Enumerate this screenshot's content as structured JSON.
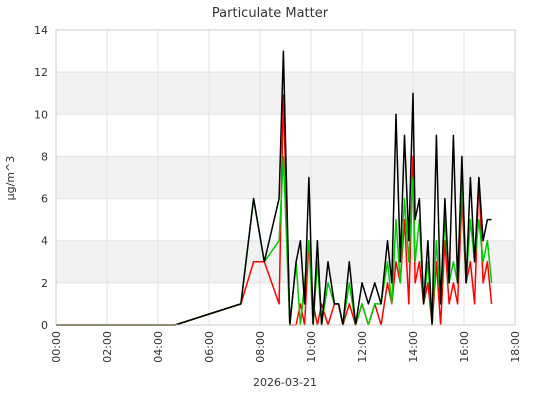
{
  "chart_data": {
    "type": "line",
    "title": "Particulate Matter",
    "xlabel": "2026-03-21",
    "ylabel": "μg/m^3",
    "xlim": [
      "00:00",
      "18:00"
    ],
    "ylim": [
      0,
      14
    ],
    "x_ticks": [
      "00:00",
      "02:00",
      "04:00",
      "06:00",
      "08:00",
      "10:00",
      "12:00",
      "14:00",
      "16:00",
      "18:00"
    ],
    "y_ticks": [
      0,
      2,
      4,
      6,
      8,
      10,
      12,
      14
    ],
    "grid": true,
    "band_fill": "#f2f2f2",
    "series": [
      {
        "color": "#ff0000",
        "x": [
          "00:00",
          "04:40",
          "07:15",
          "07:45",
          "08:10",
          "08:45",
          "08:55",
          "09:10",
          "09:25",
          "09:35",
          "09:45",
          "09:55",
          "10:05",
          "10:15",
          "10:25",
          "10:40",
          "10:55",
          "11:05",
          "11:15",
          "11:30",
          "11:45",
          "12:00",
          "12:15",
          "12:30",
          "12:45",
          "13:00",
          "13:10",
          "13:20",
          "13:30",
          "13:40",
          "13:50",
          "14:00",
          "14:05",
          "14:15",
          "14:25",
          "14:35",
          "14:45",
          "14:55",
          "15:05",
          "15:15",
          "15:25",
          "15:35",
          "15:45",
          "15:55",
          "16:05",
          "16:15",
          "16:25",
          "16:35",
          "16:45",
          "16:55",
          "17:05"
        ],
        "y": [
          0,
          0,
          1,
          3,
          3,
          1,
          10.9,
          0,
          0,
          1,
          0,
          4,
          1,
          0,
          1,
          0,
          1,
          1,
          0,
          1,
          0,
          1,
          0,
          1,
          0,
          2,
          1,
          3,
          2,
          5,
          1,
          8,
          2,
          3,
          1,
          2,
          0,
          3,
          0,
          4,
          1,
          2,
          1,
          6,
          2,
          3,
          1,
          7,
          2,
          3,
          1
        ]
      },
      {
        "color": "#00cc00",
        "x": [
          "00:00",
          "04:40",
          "07:15",
          "07:45",
          "08:10",
          "08:45",
          "08:55",
          "09:10",
          "09:25",
          "09:35",
          "09:45",
          "09:55",
          "10:05",
          "10:15",
          "10:25",
          "10:40",
          "10:55",
          "11:05",
          "11:15",
          "11:30",
          "11:45",
          "12:00",
          "12:15",
          "12:30",
          "12:45",
          "13:00",
          "13:10",
          "13:20",
          "13:30",
          "13:40",
          "13:50",
          "14:00",
          "14:05",
          "14:15",
          "14:25",
          "14:35",
          "14:45",
          "14:55",
          "15:05",
          "15:15",
          "15:25",
          "15:35",
          "15:45",
          "15:55",
          "16:05",
          "16:15",
          "16:25",
          "16:35",
          "16:45",
          "16:55",
          "17:05"
        ],
        "y": [
          0,
          0,
          1,
          6,
          3,
          4,
          8,
          0,
          3,
          0,
          2,
          4,
          0,
          3,
          0,
          2,
          1,
          1,
          0,
          2,
          0,
          1,
          0,
          1,
          1,
          3,
          1,
          5,
          2,
          6,
          3,
          7,
          3,
          5,
          1,
          3,
          0,
          4,
          1,
          5,
          2,
          3,
          2,
          7,
          2,
          5,
          3,
          5,
          3,
          4,
          2
        ]
      },
      {
        "color": "#000000",
        "x": [
          "00:00",
          "04:40",
          "07:15",
          "07:45",
          "08:10",
          "08:45",
          "08:55",
          "09:10",
          "09:25",
          "09:35",
          "09:45",
          "09:55",
          "10:05",
          "10:15",
          "10:25",
          "10:40",
          "10:55",
          "11:05",
          "11:15",
          "11:30",
          "11:45",
          "12:00",
          "12:15",
          "12:30",
          "12:45",
          "13:00",
          "13:10",
          "13:20",
          "13:30",
          "13:40",
          "13:50",
          "14:00",
          "14:05",
          "14:15",
          "14:25",
          "14:35",
          "14:45",
          "14:55",
          "15:05",
          "15:15",
          "15:25",
          "15:35",
          "15:45",
          "15:55",
          "16:05",
          "16:15",
          "16:25",
          "16:35",
          "16:45",
          "16:55",
          "17:05"
        ],
        "y": [
          0,
          0,
          1,
          6,
          3,
          6,
          13,
          0,
          3,
          4,
          1,
          7,
          0,
          4,
          0,
          3,
          1,
          1,
          0,
          3,
          0,
          2,
          1,
          2,
          1,
          4,
          2,
          10,
          3,
          9,
          4,
          11,
          5,
          6,
          1,
          4,
          0,
          9,
          1,
          6,
          2,
          9,
          2,
          8,
          2,
          7,
          3,
          7,
          4,
          5,
          5
        ]
      }
    ]
  }
}
